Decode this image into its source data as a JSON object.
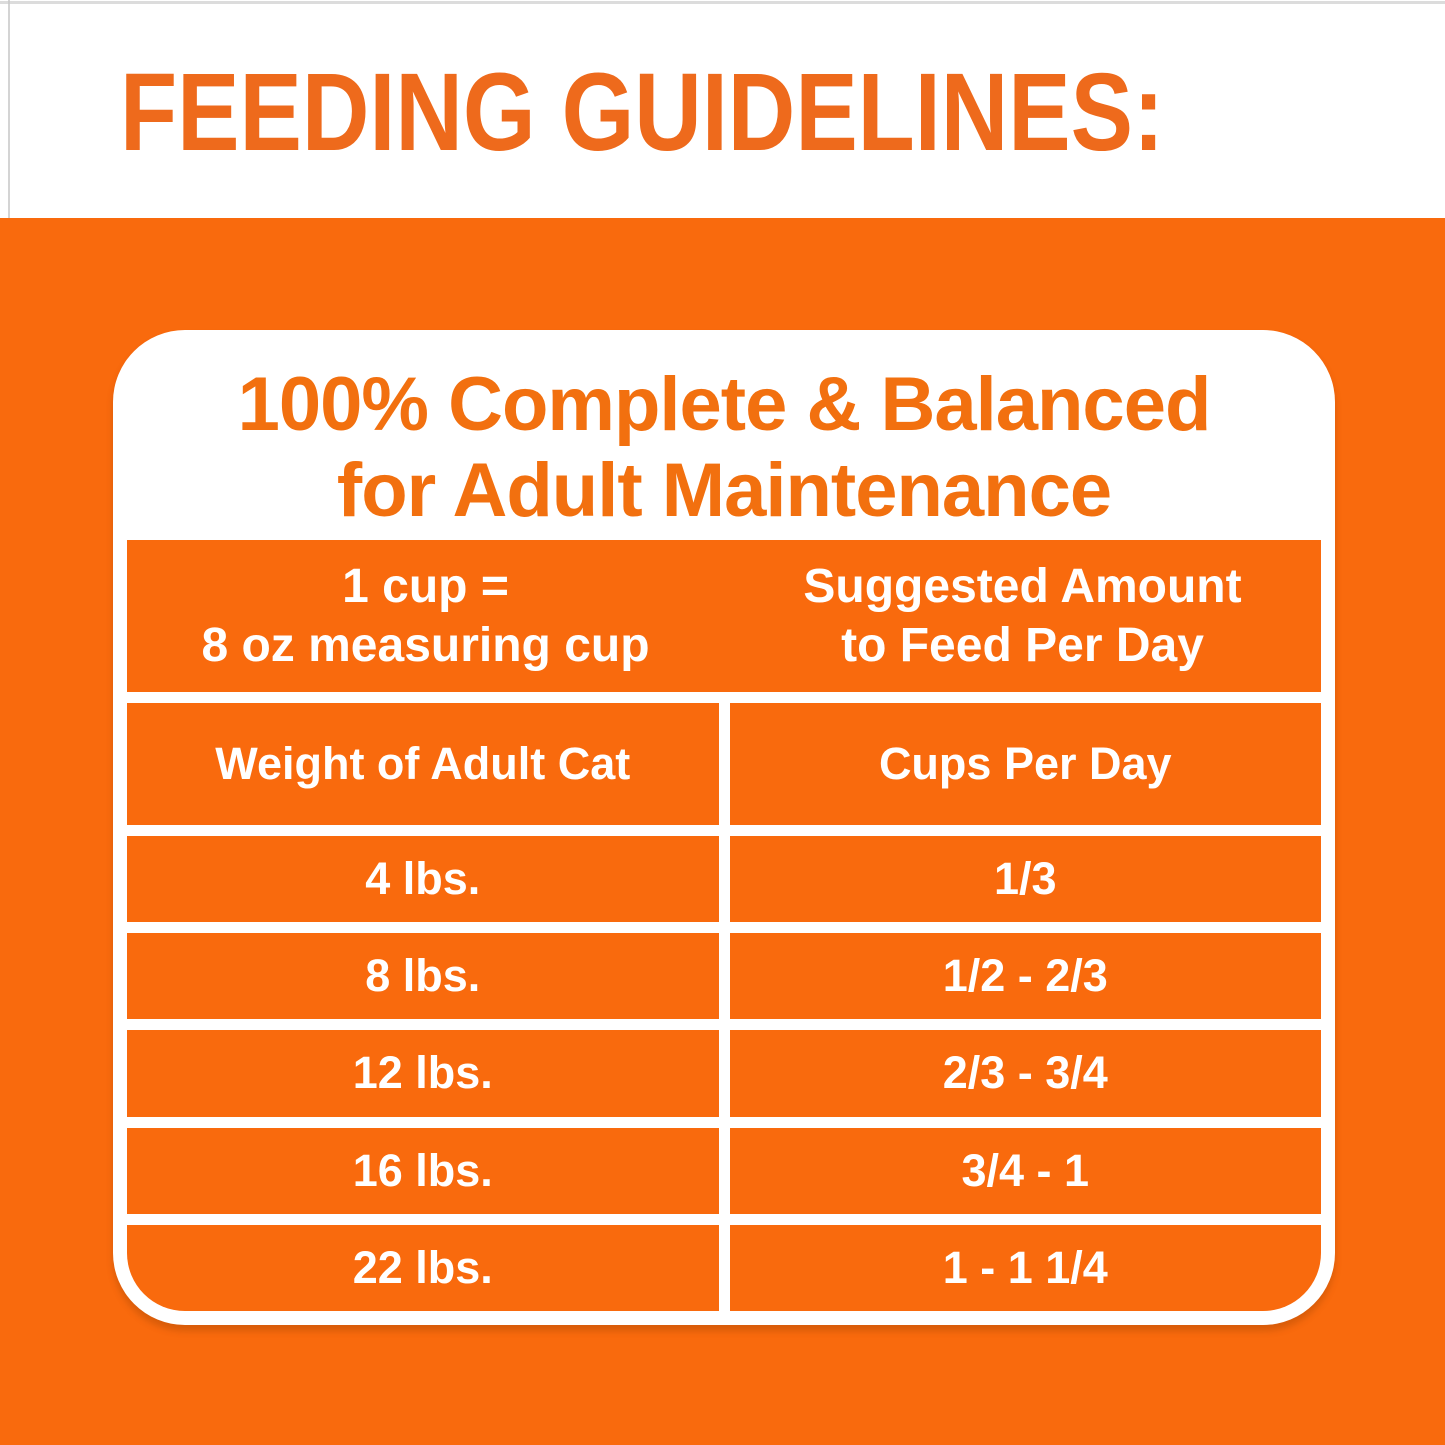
{
  "page": {
    "heading": "FEEDING GUIDELINES:"
  },
  "colors": {
    "background_orange": "#F96A0D",
    "heading_orange": "#EE6A1C",
    "card_title_orange": "#F2700F",
    "card_white": "#FFFFFF",
    "table_text": "#FFFFFF"
  },
  "card": {
    "title_line1": "100% Complete & Balanced",
    "title_line2": "for Adult Maintenance",
    "table": {
      "measure_header": {
        "line1": "1 cup =",
        "line2": "8 oz measuring cup"
      },
      "amount_header": {
        "line1": "Suggested Amount",
        "line2": "to Feed Per Day"
      },
      "column_headers": {
        "weight": "Weight of Adult Cat",
        "cups": "Cups Per Day"
      },
      "rows": [
        {
          "weight": "4 lbs.",
          "cups": "1/3"
        },
        {
          "weight": "8 lbs.",
          "cups": "1/2 - 2/3"
        },
        {
          "weight": "12 lbs.",
          "cups": "2/3 - 3/4"
        },
        {
          "weight": "16 lbs.",
          "cups": "3/4 - 1"
        },
        {
          "weight": "22 lbs.",
          "cups": "1 - 1 1/4"
        }
      ]
    }
  }
}
